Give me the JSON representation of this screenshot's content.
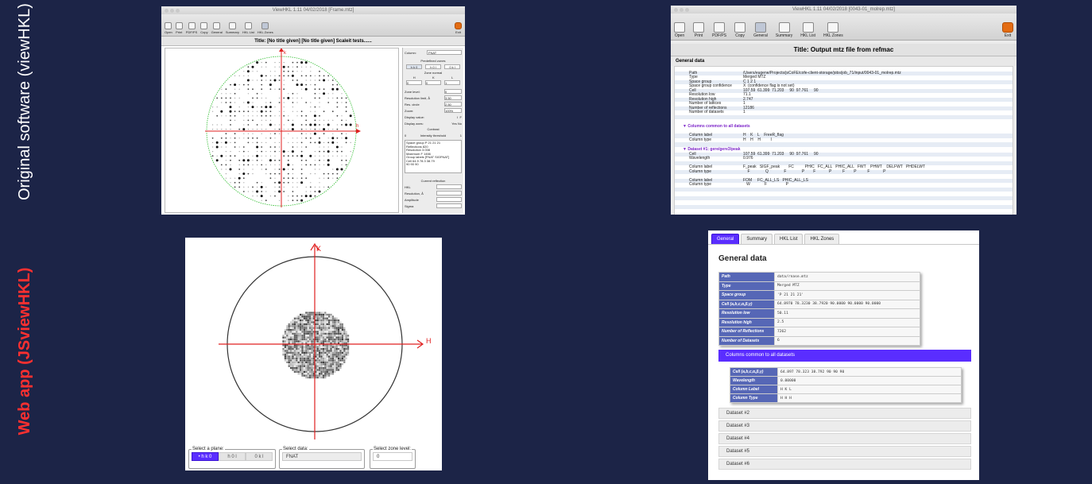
{
  "labels": {
    "original": "Original software (viewHKL)",
    "web": "Web app (JSviewHKL)"
  },
  "colors": {
    "accent": "#5a2dff",
    "header_cell": "#5667b6",
    "axis_red": "#e02020",
    "background": "#1c2447"
  },
  "viewhkl_zones": {
    "window_title": "ViewHKL 1.11 04/02/2018 [Frame.mtz]",
    "toolbar": [
      "Open",
      "Print",
      "PDF/PS",
      "Copy",
      "General",
      "Summary",
      "HKL List",
      "HKL Zones",
      "Exit"
    ],
    "title": "Title: [No title given] [No title given] Scaleit tests......",
    "axis_h": "h",
    "axis_k": "k",
    "side": {
      "column_label": "Column:",
      "column_value": "FNAT",
      "predefined_zones": "Predefined zones",
      "zone_buttons": [
        "h k 0",
        "h 0 l",
        "0 k l"
      ],
      "zone_normal": "Zone normal",
      "zone_normal_axes": [
        "H",
        "K",
        "L"
      ],
      "zone_normal_values": [
        "0",
        "0",
        "1"
      ],
      "zone_level_label": "Zone level:",
      "zone_level_value": "0",
      "res_limit_label": "Resolution limit, Å",
      "res_limit_value": "3.50",
      "res_circle_label": "Res. circle",
      "res_circle_value": "2.50",
      "zoom_label": "Zoom:",
      "zoom_value": "100%",
      "display_value_label": "Display value:",
      "display_value_options": [
        "I",
        "F"
      ],
      "display_axes_label": "Display axes:",
      "display_axes_options": [
        "Yes",
        "No"
      ],
      "contrast_label": "Contrast",
      "intensity_label": "Intensity threshold",
      "intensity_min": "0",
      "intensity_max": "1",
      "info": [
        "Space group   P 21 21 21",
        "Reflections   820",
        "Resolution    3.008",
        "Maximum F     1466",
        "Group labels  [FNAT SIGFNAT]",
        "Cell          64.9   78.3   38.79",
        "              90     90     90"
      ],
      "current_reflection": "Current reflection",
      "current_fields": [
        "HKL",
        "Resolution, Å",
        "Amplitude",
        "Sigma"
      ]
    }
  },
  "viewhkl_general": {
    "window_title": "ViewHKL 1.11 04/02/2018 [0043-01_molrep.mtz]",
    "toolbar": [
      "Open",
      "Print",
      "PDF/PS",
      "Copy",
      "General",
      "Summary",
      "HKL List",
      "HKL Zones",
      "Exit"
    ],
    "title": "Title: Output mtz file from refmac",
    "section": "General data",
    "rows": [
      {
        "k": "Path",
        "v": "/Users/eugene/Projects/jsCoFE/cofe-client-storage/jobs/job_71/input/0043-01_molrep.mtz"
      },
      {
        "k": "Type",
        "v": "Merged MTZ"
      },
      {
        "k": "Space group",
        "v": "C 1 2 1"
      },
      {
        "k": "Space group confidence",
        "v": "X  (confidence flag is not set)"
      },
      {
        "k": "Cell",
        "v": "107.59  61.399  71.203     90  97.761     90"
      },
      {
        "k": "Resolution low",
        "v": "71.1"
      },
      {
        "k": "Resolution high",
        "v": "2.747"
      },
      {
        "k": "Number of lattices",
        "v": "1"
      },
      {
        "k": "Number of reflections",
        "v": "12186"
      },
      {
        "k": "Number of datasets",
        "v": "1"
      }
    ],
    "group1": "Columns common to all datasets",
    "group1_rows": [
      {
        "k": "Column label",
        "v": "H    K    L    FreeR_flag"
      },
      {
        "k": "Column type",
        "v": "H    H    H         I"
      }
    ],
    "group2": "Dataset #1: gere/gere3/peak",
    "group2_rows": [
      {
        "k": "Cell",
        "v": "107.59  61.399  71.203     90  97.761     90"
      },
      {
        "k": "Wavelength",
        "v": "0.976"
      },
      {
        "k": "",
        "v": ""
      },
      {
        "k": "Column label",
        "v": "F_peak   SIGF_peak        FC          PHIC   FC_ALL   PHIC_ALL   FWT    PHWT    DELFWT   PHDELWT"
      },
      {
        "k": "Column type",
        "v": "    F              Q              F              P        F            P          F        P          F            P"
      },
      {
        "k": "",
        "v": ""
      },
      {
        "k": "Column label",
        "v": "FOM     FC_ALL_LS   PHIC_ALL_LS"
      },
      {
        "k": "Column type",
        "v": "   W             F                 P"
      }
    ]
  },
  "jsviewhkl_zones": {
    "axis_h": "H",
    "axis_k": "K",
    "plane_legend": "Select a plane:",
    "plane_options": [
      "h k 0",
      "h 0 l",
      "0 k l"
    ],
    "plane_selected": "• h k 0",
    "data_legend": "Select data:",
    "data_value": "FNAT",
    "zone_legend": "Select zone level:",
    "zone_value": "0"
  },
  "jsviewhkl_general": {
    "tabs": [
      "General",
      "Summary",
      "HKL List",
      "HKL Zones"
    ],
    "heading": "General data",
    "rows": [
      {
        "k": "Path",
        "v": "data/rnase.mtz"
      },
      {
        "k": "Type",
        "v": "Merged MTZ"
      },
      {
        "k": "Space group",
        "v": "'P 21 21 21'"
      },
      {
        "k": "Cell (a,b,c,α,β,γ)",
        "v": "64.8970 78.3230 38.7920 90.0000 90.0000 90.0000"
      },
      {
        "k": "Resolution low",
        "v": "50.11"
      },
      {
        "k": "Resolution high",
        "v": "2.5"
      },
      {
        "k": "Number of Reflections",
        "v": "7262"
      },
      {
        "k": "Number of Datasets",
        "v": "6"
      }
    ],
    "common": "Columns common to all datasets",
    "common_rows": [
      {
        "k": "Cell (a,b,c,α,β,γ)",
        "v": "64.897 78.323 38.792    90 90 90"
      },
      {
        "k": "Wavelength",
        "v": "0.00000"
      },
      {
        "k": "Column Label",
        "v": "H  K  L"
      },
      {
        "k": "Column Type",
        "v": "H  H  H"
      }
    ],
    "datasets": [
      "Dataset #2",
      "Dataset #3",
      "Dataset #4",
      "Dataset #5",
      "Dataset #6"
    ]
  }
}
